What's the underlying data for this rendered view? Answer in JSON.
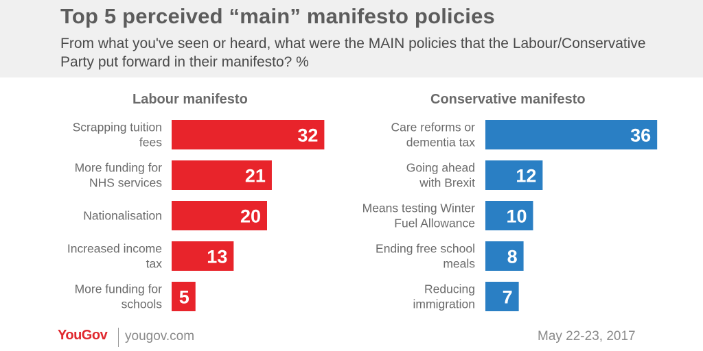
{
  "header": {
    "title": "Top 5 perceived “main” manifesto policies",
    "subtitle": "From what you've seen or heard, what were the MAIN policies that the Labour/Conservative Party put forward in their manifesto? %"
  },
  "footer": {
    "brand": "YouGov",
    "url": "yougov.com",
    "date": "May 22-23, 2017"
  },
  "chart_data": [
    {
      "type": "bar",
      "orientation": "horizontal",
      "title": "Labour manifesto",
      "color": "#e8242b",
      "categories": [
        [
          "Scrapping tuition",
          "fees"
        ],
        [
          "More funding for",
          "NHS services"
        ],
        [
          "Nationalisation"
        ],
        [
          "Increased income",
          "tax"
        ],
        [
          "More funding for",
          "schools"
        ]
      ],
      "values": [
        32,
        21,
        20,
        13,
        5
      ]
    },
    {
      "type": "bar",
      "orientation": "horizontal",
      "title": "Conservative manifesto",
      "color": "#2a7fc4",
      "categories": [
        [
          "Care reforms or",
          "dementia tax"
        ],
        [
          "Going ahead",
          "with Brexit"
        ],
        [
          "Means testing Winter",
          "Fuel Allowance"
        ],
        [
          "Ending free school",
          "meals"
        ],
        [
          "Reducing",
          "immigration"
        ]
      ],
      "values": [
        36,
        12,
        10,
        8,
        7
      ]
    }
  ]
}
